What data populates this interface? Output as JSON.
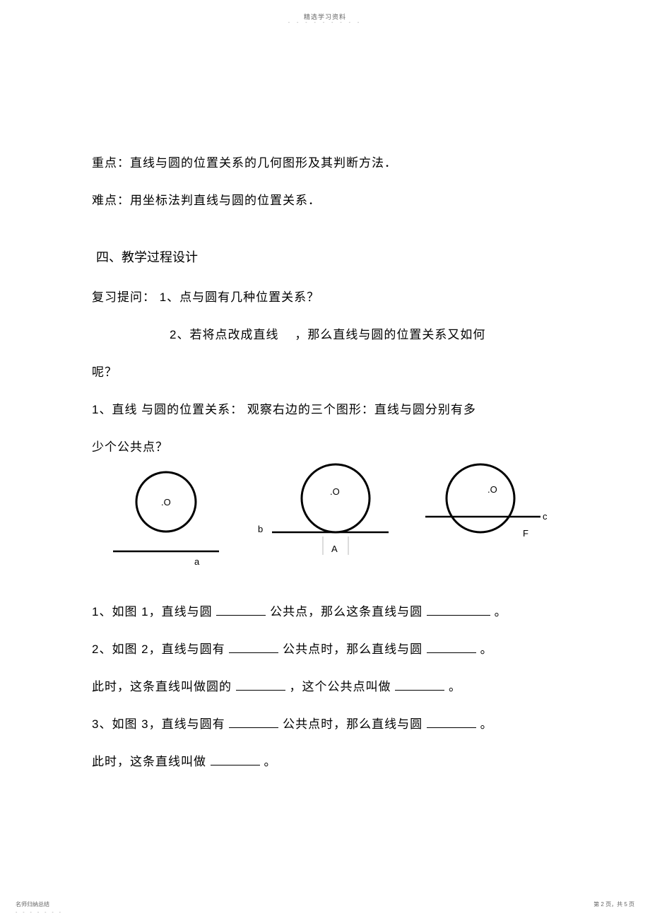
{
  "header": {
    "title": "精选学习资料",
    "dots": "- - - - - - - - -"
  },
  "content": {
    "keypoint": "重点：直线与圆的位置关系的几何图形及其判断方法．",
    "difficulty": "难点：用坐标法判直线与圆的位置关系．",
    "section_heading": "四、教学过程设计",
    "review_q1_prefix": "复习提问：  1、点与圆有几种位置关系？",
    "review_q2": "2、若将点改成直线    ，那么直线与圆的位置关系又如何",
    "review_q2_tail": "呢？",
    "obs_line": "1、直线  与圆的位置关系：  观察右边的三个图形：直线与圆分别有多",
    "obs_line2": "少个公共点？",
    "fill": {
      "q1_a": "1、如图  1，直线与圆 ",
      "q1_b": "公共点，那么这条直线与圆  ",
      "q2_a": "2、如图   2，直线与圆有 ",
      "q2_b": "公共点时，那么直线与圆  ",
      "q2c_a": "此时，这条直线叫做圆的  ",
      "q2c_b": "，这个公共点叫做  ",
      "q3_a": "3、如图  3，直线与圆有 ",
      "q3_b": "公共点时，那么直线与圆  ",
      "q4_a": "此时，这条直线叫做  "
    },
    "period": "。",
    "comma": "，"
  },
  "diagram": {
    "center_label": ".O",
    "line_a": "a",
    "line_b": "b",
    "line_c": "c",
    "point_A": "A",
    "point_F": "F",
    "circle_stroke": "#000000",
    "line_stroke": "#000000",
    "circle_stroke_width": 3,
    "line_stroke_width": 2.5
  },
  "footer": {
    "left": "名师归纳总结",
    "left_dots": "- - - - - - -",
    "right_prefix": "第 ",
    "page_cur": "2",
    "right_mid": " 页，共 ",
    "page_total": "5",
    "right_suffix": " 页"
  },
  "blank": {
    "w_med": 70,
    "w_long": 90
  }
}
